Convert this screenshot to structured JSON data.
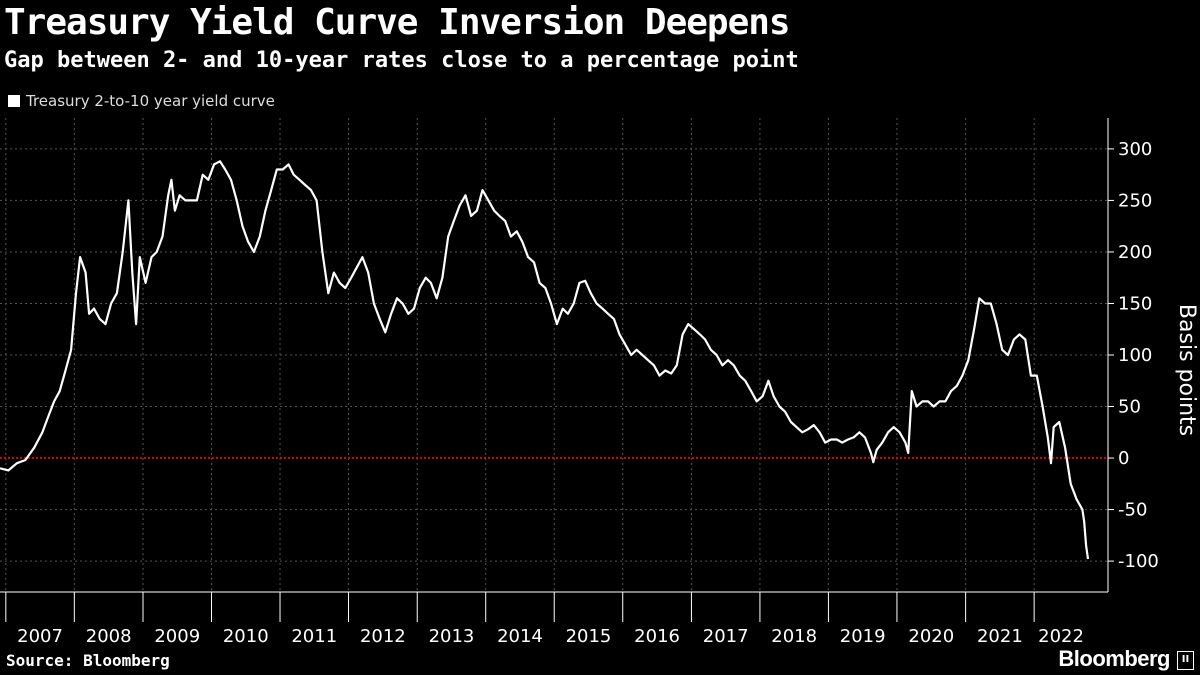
{
  "title": "Treasury Yield Curve Inversion Deepens",
  "subtitle": "Gap between 2- and 10-year rates close to a percentage point",
  "source": "Source: Bloomberg",
  "logo": "Bloomberg",
  "logo_badge": "II",
  "colors": {
    "background": "#000000",
    "line": "#ffffff",
    "zero_line": "#d0021b",
    "grid": "#555555"
  },
  "chart_data": {
    "type": "line",
    "legend": "Treasury 2-to-10 year yield curve",
    "legend_placement": "top-left",
    "ylabel": "Basis points",
    "xlabel": "",
    "ylim": [
      -130,
      330
    ],
    "yticks": [
      300,
      250,
      200,
      150,
      100,
      50,
      0,
      -50,
      -100
    ],
    "x_tick_labels": [
      "2007",
      "2008",
      "2009",
      "2010",
      "2011",
      "2012",
      "2013",
      "2014",
      "2015",
      "2016",
      "2017",
      "2018",
      "2019",
      "2020",
      "2021",
      "2022"
    ],
    "xlim": [
      "2006-12-01",
      "2022-10-15"
    ],
    "grid": true,
    "reference_line": {
      "y": 0,
      "style": "dotted",
      "color": "#d0021b"
    },
    "series": [
      {
        "name": "Treasury 2-to-10 year yield curve",
        "points": [
          [
            "2006-12-01",
            -10
          ],
          [
            "2007-01-15",
            -12
          ],
          [
            "2007-03-01",
            -5
          ],
          [
            "2007-04-15",
            -2
          ],
          [
            "2007-06-01",
            10
          ],
          [
            "2007-07-15",
            25
          ],
          [
            "2007-08-15",
            40
          ],
          [
            "2007-09-15",
            55
          ],
          [
            "2007-10-15",
            65
          ],
          [
            "2007-11-15",
            85
          ],
          [
            "2007-12-15",
            105
          ],
          [
            "2008-01-10",
            160
          ],
          [
            "2008-02-01",
            195
          ],
          [
            "2008-03-01",
            180
          ],
          [
            "2008-03-20",
            140
          ],
          [
            "2008-04-15",
            145
          ],
          [
            "2008-05-15",
            135
          ],
          [
            "2008-06-15",
            130
          ],
          [
            "2008-07-15",
            150
          ],
          [
            "2008-08-15",
            160
          ],
          [
            "2008-09-15",
            200
          ],
          [
            "2008-10-15",
            250
          ],
          [
            "2008-11-05",
            180
          ],
          [
            "2008-11-25",
            130
          ],
          [
            "2008-12-15",
            195
          ],
          [
            "2009-01-15",
            170
          ],
          [
            "2009-02-15",
            195
          ],
          [
            "2009-03-15",
            200
          ],
          [
            "2009-04-15",
            215
          ],
          [
            "2009-05-15",
            255
          ],
          [
            "2009-06-01",
            270
          ],
          [
            "2009-06-20",
            240
          ],
          [
            "2009-07-15",
            255
          ],
          [
            "2009-08-15",
            250
          ],
          [
            "2009-09-15",
            250
          ],
          [
            "2009-10-15",
            250
          ],
          [
            "2009-11-15",
            275
          ],
          [
            "2009-12-15",
            270
          ],
          [
            "2010-01-15",
            285
          ],
          [
            "2010-02-15",
            288
          ],
          [
            "2010-03-15",
            280
          ],
          [
            "2010-04-15",
            270
          ],
          [
            "2010-05-15",
            250
          ],
          [
            "2010-06-15",
            225
          ],
          [
            "2010-07-15",
            210
          ],
          [
            "2010-08-15",
            200
          ],
          [
            "2010-09-15",
            215
          ],
          [
            "2010-10-15",
            240
          ],
          [
            "2010-11-15",
            260
          ],
          [
            "2010-12-15",
            280
          ],
          [
            "2011-01-15",
            280
          ],
          [
            "2011-02-15",
            285
          ],
          [
            "2011-03-15",
            275
          ],
          [
            "2011-04-15",
            270
          ],
          [
            "2011-05-15",
            265
          ],
          [
            "2011-06-15",
            260
          ],
          [
            "2011-07-15",
            250
          ],
          [
            "2011-08-15",
            200
          ],
          [
            "2011-09-15",
            160
          ],
          [
            "2011-10-15",
            180
          ],
          [
            "2011-11-15",
            170
          ],
          [
            "2011-12-15",
            165
          ],
          [
            "2012-01-15",
            175
          ],
          [
            "2012-03-15",
            195
          ],
          [
            "2012-04-15",
            180
          ],
          [
            "2012-05-15",
            150
          ],
          [
            "2012-06-15",
            135
          ],
          [
            "2012-07-15",
            122
          ],
          [
            "2012-08-15",
            140
          ],
          [
            "2012-09-15",
            155
          ],
          [
            "2012-10-15",
            150
          ],
          [
            "2012-11-15",
            140
          ],
          [
            "2012-12-15",
            145
          ],
          [
            "2013-01-15",
            165
          ],
          [
            "2013-02-15",
            175
          ],
          [
            "2013-03-15",
            170
          ],
          [
            "2013-04-15",
            155
          ],
          [
            "2013-05-15",
            175
          ],
          [
            "2013-06-15",
            215
          ],
          [
            "2013-07-15",
            230
          ],
          [
            "2013-08-15",
            245
          ],
          [
            "2013-09-15",
            255
          ],
          [
            "2013-10-15",
            235
          ],
          [
            "2013-11-15",
            240
          ],
          [
            "2013-12-15",
            260
          ],
          [
            "2014-01-15",
            250
          ],
          [
            "2014-02-15",
            240
          ],
          [
            "2014-03-15",
            235
          ],
          [
            "2014-04-15",
            230
          ],
          [
            "2014-05-15",
            215
          ],
          [
            "2014-06-15",
            220
          ],
          [
            "2014-07-15",
            210
          ],
          [
            "2014-08-15",
            195
          ],
          [
            "2014-09-15",
            190
          ],
          [
            "2014-10-15",
            170
          ],
          [
            "2014-11-15",
            165
          ],
          [
            "2014-12-15",
            150
          ],
          [
            "2015-01-15",
            130
          ],
          [
            "2015-02-15",
            145
          ],
          [
            "2015-03-15",
            140
          ],
          [
            "2015-04-15",
            150
          ],
          [
            "2015-05-15",
            170
          ],
          [
            "2015-06-15",
            172
          ],
          [
            "2015-07-15",
            160
          ],
          [
            "2015-08-15",
            150
          ],
          [
            "2015-09-15",
            145
          ],
          [
            "2015-10-15",
            140
          ],
          [
            "2015-11-15",
            135
          ],
          [
            "2015-12-15",
            120
          ],
          [
            "2016-01-15",
            110
          ],
          [
            "2016-02-15",
            100
          ],
          [
            "2016-03-15",
            105
          ],
          [
            "2016-04-15",
            100
          ],
          [
            "2016-05-15",
            95
          ],
          [
            "2016-06-15",
            90
          ],
          [
            "2016-07-15",
            80
          ],
          [
            "2016-08-15",
            85
          ],
          [
            "2016-09-15",
            82
          ],
          [
            "2016-10-15",
            90
          ],
          [
            "2016-11-15",
            120
          ],
          [
            "2016-12-15",
            130
          ],
          [
            "2017-01-15",
            125
          ],
          [
            "2017-02-15",
            120
          ],
          [
            "2017-03-15",
            115
          ],
          [
            "2017-04-15",
            105
          ],
          [
            "2017-05-15",
            100
          ],
          [
            "2017-06-15",
            90
          ],
          [
            "2017-07-15",
            95
          ],
          [
            "2017-08-15",
            90
          ],
          [
            "2017-09-15",
            80
          ],
          [
            "2017-10-15",
            75
          ],
          [
            "2017-11-15",
            65
          ],
          [
            "2017-12-15",
            55
          ],
          [
            "2018-01-15",
            60
          ],
          [
            "2018-02-15",
            75
          ],
          [
            "2018-03-15",
            60
          ],
          [
            "2018-04-15",
            50
          ],
          [
            "2018-05-15",
            45
          ],
          [
            "2018-06-15",
            35
          ],
          [
            "2018-07-15",
            30
          ],
          [
            "2018-08-15",
            25
          ],
          [
            "2018-09-15",
            28
          ],
          [
            "2018-10-15",
            32
          ],
          [
            "2018-11-15",
            25
          ],
          [
            "2018-12-15",
            15
          ],
          [
            "2019-01-15",
            18
          ],
          [
            "2019-02-15",
            18
          ],
          [
            "2019-03-15",
            15
          ],
          [
            "2019-04-15",
            18
          ],
          [
            "2019-05-15",
            20
          ],
          [
            "2019-06-15",
            25
          ],
          [
            "2019-07-15",
            20
          ],
          [
            "2019-08-15",
            5
          ],
          [
            "2019-08-28",
            -4
          ],
          [
            "2019-09-15",
            8
          ],
          [
            "2019-10-15",
            15
          ],
          [
            "2019-11-15",
            25
          ],
          [
            "2019-12-15",
            30
          ],
          [
            "2020-01-15",
            25
          ],
          [
            "2020-02-15",
            15
          ],
          [
            "2020-03-01",
            5
          ],
          [
            "2020-03-20",
            65
          ],
          [
            "2020-04-15",
            50
          ],
          [
            "2020-05-15",
            55
          ],
          [
            "2020-06-15",
            55
          ],
          [
            "2020-07-15",
            50
          ],
          [
            "2020-08-15",
            55
          ],
          [
            "2020-09-15",
            55
          ],
          [
            "2020-10-15",
            65
          ],
          [
            "2020-11-15",
            70
          ],
          [
            "2020-12-15",
            80
          ],
          [
            "2021-01-15",
            95
          ],
          [
            "2021-02-15",
            125
          ],
          [
            "2021-03-15",
            155
          ],
          [
            "2021-04-15",
            150
          ],
          [
            "2021-05-15",
            150
          ],
          [
            "2021-06-15",
            130
          ],
          [
            "2021-07-15",
            105
          ],
          [
            "2021-08-15",
            100
          ],
          [
            "2021-09-15",
            115
          ],
          [
            "2021-10-15",
            120
          ],
          [
            "2021-11-15",
            115
          ],
          [
            "2021-12-15",
            80
          ],
          [
            "2022-01-15",
            80
          ],
          [
            "2022-02-15",
            50
          ],
          [
            "2022-03-15",
            20
          ],
          [
            "2022-04-01",
            -5
          ],
          [
            "2022-04-15",
            30
          ],
          [
            "2022-05-15",
            35
          ],
          [
            "2022-06-15",
            10
          ],
          [
            "2022-07-15",
            -25
          ],
          [
            "2022-08-15",
            -40
          ],
          [
            "2022-09-15",
            -50
          ],
          [
            "2022-09-25",
            -62
          ],
          [
            "2022-10-05",
            -85
          ],
          [
            "2022-10-15",
            -98
          ]
        ]
      }
    ]
  }
}
